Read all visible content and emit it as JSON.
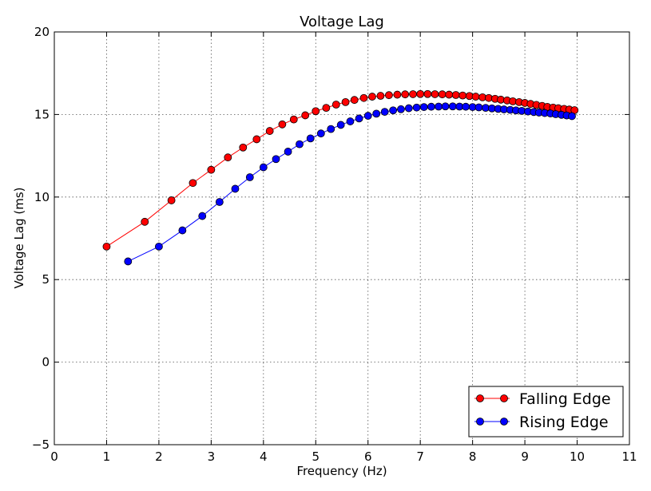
{
  "chart_data": {
    "type": "line",
    "title": "Voltage Lag",
    "xlabel": "Frequency (Hz)",
    "ylabel": "Voltage Lag (ms)",
    "xlim": [
      0,
      11
    ],
    "ylim": [
      -5,
      20
    ],
    "xticks": [
      0,
      1,
      2,
      3,
      4,
      5,
      6,
      7,
      8,
      9,
      10,
      11
    ],
    "yticks": [
      -5,
      0,
      5,
      10,
      15,
      20
    ],
    "xtick_labels": [
      "0",
      "1",
      "2",
      "3",
      "4",
      "5",
      "6",
      "7",
      "8",
      "9",
      "10",
      "11"
    ],
    "ytick_labels": [
      "−5",
      "0",
      "5",
      "10",
      "15",
      "20"
    ],
    "grid": true,
    "legend_position": "bottom-right",
    "series": [
      {
        "name": "Falling Edge",
        "color": "#ff0000",
        "line_color": "#ff0000",
        "marker": "circle",
        "x": [
          1.0,
          1.73,
          2.24,
          2.65,
          3.0,
          3.32,
          3.61,
          3.87,
          4.12,
          4.36,
          4.58,
          4.8,
          5.0,
          5.2,
          5.39,
          5.57,
          5.74,
          5.92,
          6.08,
          6.24,
          6.4,
          6.56,
          6.71,
          6.86,
          7.0,
          7.14,
          7.28,
          7.42,
          7.55,
          7.68,
          7.81,
          7.94,
          8.06,
          8.19,
          8.31,
          8.43,
          8.54,
          8.66,
          8.77,
          8.89,
          9.0,
          9.11,
          9.22,
          9.33,
          9.43,
          9.54,
          9.64,
          9.75,
          9.85,
          9.95
        ],
        "y": [
          7.0,
          8.5,
          9.8,
          10.85,
          11.65,
          12.4,
          13.0,
          13.5,
          14.0,
          14.4,
          14.7,
          14.95,
          15.2,
          15.4,
          15.6,
          15.75,
          15.88,
          16.0,
          16.08,
          16.13,
          16.17,
          16.2,
          16.22,
          16.23,
          16.24,
          16.24,
          16.23,
          16.22,
          16.2,
          16.18,
          16.15,
          16.12,
          16.08,
          16.04,
          16.0,
          15.95,
          15.9,
          15.85,
          15.8,
          15.75,
          15.7,
          15.64,
          15.58,
          15.52,
          15.46,
          15.42,
          15.38,
          15.34,
          15.3,
          15.26
        ]
      },
      {
        "name": "Rising Edge",
        "color": "#0000ff",
        "line_color": "#0000ff",
        "marker": "circle",
        "x": [
          1.41,
          2.0,
          2.45,
          2.83,
          3.16,
          3.46,
          3.74,
          4.0,
          4.24,
          4.47,
          4.69,
          4.9,
          5.1,
          5.29,
          5.48,
          5.66,
          5.83,
          6.0,
          6.16,
          6.32,
          6.48,
          6.63,
          6.78,
          6.93,
          7.07,
          7.21,
          7.35,
          7.48,
          7.62,
          7.75,
          7.87,
          8.0,
          8.12,
          8.25,
          8.37,
          8.49,
          8.6,
          8.72,
          8.83,
          8.94,
          9.06,
          9.17,
          9.27,
          9.38,
          9.49,
          9.59,
          9.7,
          9.8,
          9.9
        ],
        "y": [
          6.1,
          7.0,
          7.98,
          8.85,
          9.7,
          10.5,
          11.2,
          11.8,
          12.3,
          12.75,
          13.2,
          13.55,
          13.85,
          14.12,
          14.37,
          14.58,
          14.76,
          14.92,
          15.05,
          15.16,
          15.25,
          15.32,
          15.38,
          15.42,
          15.45,
          15.47,
          15.48,
          15.49,
          15.49,
          15.48,
          15.47,
          15.45,
          15.43,
          15.4,
          15.37,
          15.34,
          15.31,
          15.28,
          15.25,
          15.22,
          15.18,
          15.15,
          15.12,
          15.09,
          15.06,
          15.02,
          14.98,
          14.94,
          14.9
        ]
      }
    ]
  }
}
